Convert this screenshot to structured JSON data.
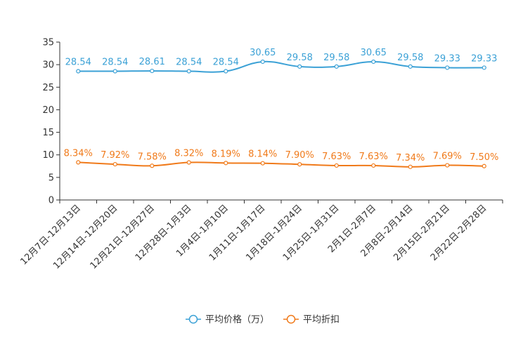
{
  "chart_data": {
    "type": "line",
    "title": "",
    "xlabel": "",
    "ylabel": "",
    "ylim": [
      0,
      35
    ],
    "yticks": [
      0,
      5,
      10,
      15,
      20,
      25,
      30,
      35
    ],
    "grid": false,
    "legend_position": "bottom-center",
    "categories": [
      "12月7日-12月13日",
      "12月14日-12月20日",
      "12月21日-12月27日",
      "12月28日-1月3日",
      "1月4日-1月10日",
      "1月11日-1月17日",
      "1月18日-1月24日",
      "1月25日-1月31日",
      "2月1日-2月7日",
      "2月8日-2月14日",
      "2月15日-2月21日",
      "2月22日-2月28日"
    ],
    "series": [
      {
        "name": "平均价格（万）",
        "color": "#3ba1d6",
        "values": [
          28.54,
          28.54,
          28.61,
          28.54,
          28.54,
          30.65,
          29.58,
          29.58,
          30.65,
          29.58,
          29.33,
          29.33
        ],
        "labels": [
          "28.54",
          "28.54",
          "28.61",
          "28.54",
          "28.54",
          "30.65",
          "29.58",
          "29.58",
          "30.65",
          "29.58",
          "29.33",
          "29.33"
        ]
      },
      {
        "name": "平均折扣",
        "color": "#f07a1a",
        "values": [
          8.34,
          7.92,
          7.58,
          8.32,
          8.19,
          8.14,
          7.9,
          7.63,
          7.63,
          7.34,
          7.69,
          7.5
        ],
        "labels": [
          "8.34%",
          "7.92%",
          "7.58%",
          "8.32%",
          "8.19%",
          "8.14%",
          "7.90%",
          "7.63%",
          "7.63%",
          "7.34%",
          "7.69%",
          "7.50%"
        ]
      }
    ]
  }
}
